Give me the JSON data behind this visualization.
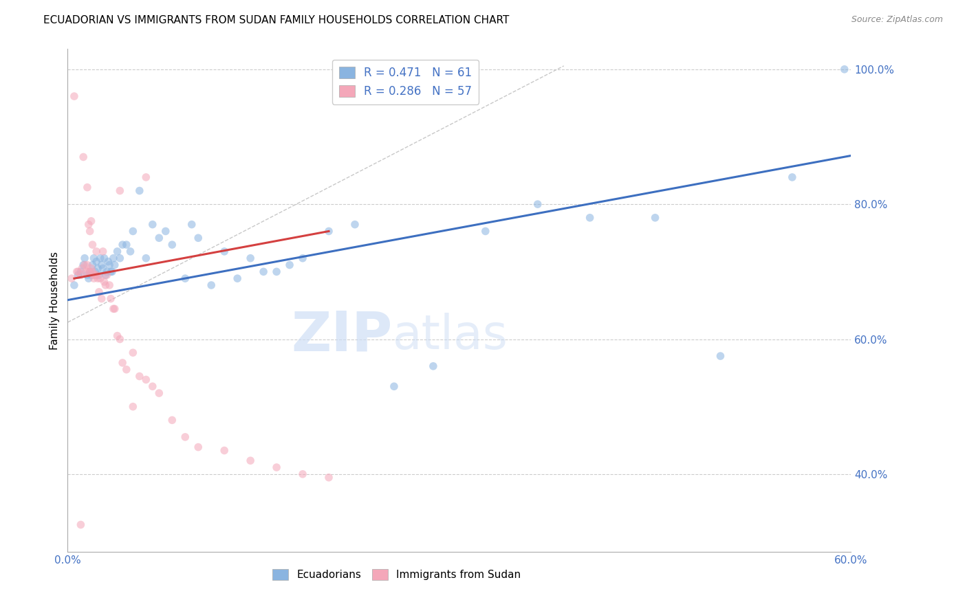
{
  "title": "ECUADORIAN VS IMMIGRANTS FROM SUDAN FAMILY HOUSEHOLDS CORRELATION CHART",
  "source": "Source: ZipAtlas.com",
  "ylabel": "Family Households",
  "watermark": "ZIPatlas",
  "xlim": [
    0.0,
    0.6
  ],
  "ylim": [
    0.285,
    1.03
  ],
  "xticks": [
    0.0,
    0.1,
    0.2,
    0.3,
    0.4,
    0.5,
    0.6
  ],
  "xtick_labels": [
    "0.0%",
    "",
    "",
    "",
    "",
    "",
    "60.0%"
  ],
  "yticks_right": [
    0.4,
    0.6,
    0.8,
    1.0
  ],
  "ytick_labels_right": [
    "40.0%",
    "60.0%",
    "80.0%",
    "100.0%"
  ],
  "blue_scatter_x": [
    0.005,
    0.008,
    0.01,
    0.012,
    0.013,
    0.015,
    0.016,
    0.017,
    0.018,
    0.019,
    0.02,
    0.021,
    0.022,
    0.023,
    0.024,
    0.025,
    0.026,
    0.027,
    0.028,
    0.029,
    0.03,
    0.031,
    0.032,
    0.033,
    0.034,
    0.035,
    0.036,
    0.038,
    0.04,
    0.042,
    0.045,
    0.048,
    0.05,
    0.055,
    0.06,
    0.065,
    0.07,
    0.075,
    0.08,
    0.09,
    0.095,
    0.1,
    0.11,
    0.12,
    0.13,
    0.14,
    0.15,
    0.16,
    0.17,
    0.18,
    0.2,
    0.22,
    0.25,
    0.28,
    0.32,
    0.36,
    0.4,
    0.45,
    0.5,
    0.555,
    0.595
  ],
  "blue_scatter_y": [
    0.68,
    0.695,
    0.7,
    0.71,
    0.72,
    0.695,
    0.69,
    0.7,
    0.695,
    0.71,
    0.72,
    0.7,
    0.715,
    0.705,
    0.695,
    0.72,
    0.71,
    0.705,
    0.72,
    0.695,
    0.7,
    0.715,
    0.71,
    0.7,
    0.7,
    0.72,
    0.71,
    0.73,
    0.72,
    0.74,
    0.74,
    0.73,
    0.76,
    0.82,
    0.72,
    0.77,
    0.75,
    0.76,
    0.74,
    0.69,
    0.77,
    0.75,
    0.68,
    0.73,
    0.69,
    0.72,
    0.7,
    0.7,
    0.71,
    0.72,
    0.76,
    0.77,
    0.53,
    0.56,
    0.76,
    0.8,
    0.78,
    0.78,
    0.575,
    0.84,
    1.0
  ],
  "pink_scatter_x": [
    0.003,
    0.005,
    0.007,
    0.008,
    0.01,
    0.011,
    0.012,
    0.013,
    0.014,
    0.015,
    0.015,
    0.016,
    0.016,
    0.017,
    0.017,
    0.018,
    0.018,
    0.019,
    0.019,
    0.02,
    0.02,
    0.021,
    0.022,
    0.022,
    0.023,
    0.024,
    0.025,
    0.026,
    0.027,
    0.028,
    0.029,
    0.03,
    0.032,
    0.033,
    0.035,
    0.036,
    0.038,
    0.04,
    0.042,
    0.045,
    0.05,
    0.055,
    0.06,
    0.065,
    0.07,
    0.08,
    0.09,
    0.1,
    0.12,
    0.14,
    0.16,
    0.18,
    0.2,
    0.04,
    0.05,
    0.06,
    0.01
  ],
  "pink_scatter_y": [
    0.69,
    0.96,
    0.7,
    0.7,
    0.695,
    0.705,
    0.87,
    0.71,
    0.7,
    0.825,
    0.71,
    0.77,
    0.7,
    0.76,
    0.7,
    0.775,
    0.705,
    0.74,
    0.7,
    0.695,
    0.69,
    0.695,
    0.73,
    0.695,
    0.69,
    0.67,
    0.69,
    0.66,
    0.73,
    0.685,
    0.68,
    0.695,
    0.68,
    0.66,
    0.645,
    0.645,
    0.605,
    0.6,
    0.565,
    0.555,
    0.58,
    0.545,
    0.54,
    0.53,
    0.52,
    0.48,
    0.455,
    0.44,
    0.435,
    0.42,
    0.41,
    0.4,
    0.395,
    0.82,
    0.5,
    0.84,
    0.325
  ],
  "blue_line_x": [
    0.0,
    0.6
  ],
  "blue_line_y": [
    0.658,
    0.872
  ],
  "pink_line_x": [
    0.005,
    0.2
  ],
  "pink_line_y": [
    0.69,
    0.76
  ],
  "diagonal_line_x": [
    0.0,
    0.38
  ],
  "diagonal_line_y": [
    0.625,
    1.005
  ],
  "blue_color": "#8ab4e0",
  "pink_color": "#f4a7b9",
  "blue_line_color": "#3d6fc0",
  "pink_line_color": "#d44040",
  "diagonal_color": "#c8c8c8",
  "legend_blue_R": "R = 0.471",
  "legend_blue_N": "N = 61",
  "legend_pink_R": "R = 0.286",
  "legend_pink_N": "N = 57",
  "scatter_size": 70,
  "scatter_alpha": 0.55,
  "title_fontsize": 11,
  "axis_color": "#4472c4",
  "background_color": "#ffffff"
}
